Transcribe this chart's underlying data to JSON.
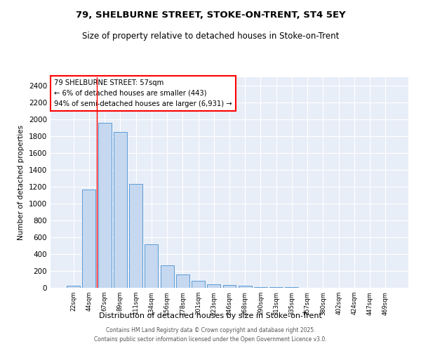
{
  "title_line1": "79, SHELBURNE STREET, STOKE-ON-TRENT, ST4 5EY",
  "title_line2": "Size of property relative to detached houses in Stoke-on-Trent",
  "xlabel": "Distribution of detached houses by size in Stoke-on-Trent",
  "ylabel": "Number of detached properties",
  "categories": [
    "22sqm",
    "44sqm",
    "67sqm",
    "89sqm",
    "111sqm",
    "134sqm",
    "156sqm",
    "178sqm",
    "201sqm",
    "223sqm",
    "246sqm",
    "268sqm",
    "290sqm",
    "313sqm",
    "335sqm",
    "357sqm",
    "380sqm",
    "402sqm",
    "424sqm",
    "447sqm",
    "469sqm"
  ],
  "values": [
    25,
    1170,
    1960,
    1850,
    1235,
    515,
    270,
    155,
    80,
    42,
    30,
    28,
    10,
    7,
    5,
    4,
    3,
    2,
    2,
    2,
    1
  ],
  "bar_color": "#c5d8f0",
  "bar_edge_color": "#5b9bd5",
  "vline_color": "red",
  "vline_position": 1.5,
  "annotation_title": "79 SHELBURNE STREET: 57sqm",
  "annotation_line1": "← 6% of detached houses are smaller (443)",
  "annotation_line2": "94% of semi-detached houses are larger (6,931) →",
  "annotation_box_color": "white",
  "annotation_box_edge": "red",
  "ylim": [
    0,
    2500
  ],
  "yticks": [
    0,
    200,
    400,
    600,
    800,
    1000,
    1200,
    1400,
    1600,
    1800,
    2000,
    2200,
    2400
  ],
  "bg_color": "#e8eef8",
  "footer_line1": "Contains HM Land Registry data © Crown copyright and database right 2025.",
  "footer_line2": "Contains public sector information licensed under the Open Government Licence v3.0."
}
